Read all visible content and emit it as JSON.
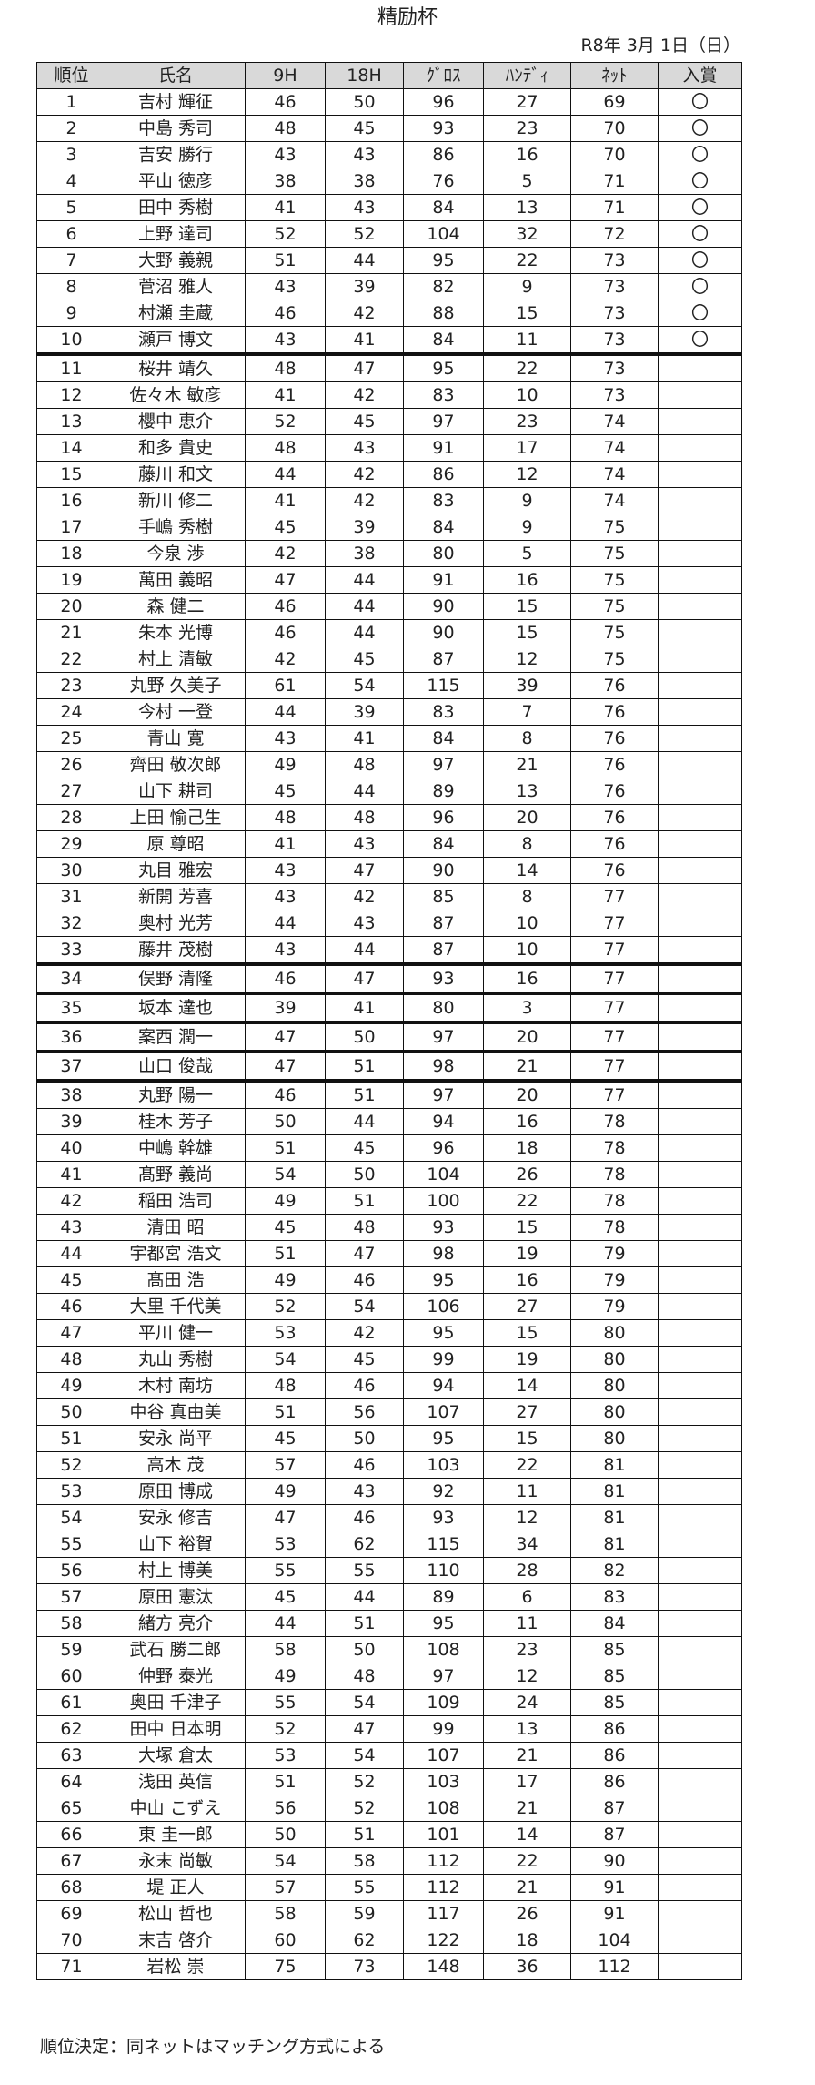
{
  "title": "精励杯",
  "date": "R8年 3月 1日（日）",
  "columns": [
    "順位",
    "氏名",
    "9H",
    "18H",
    "ｸﾞﾛｽ",
    "ﾊﾝﾃﾞｨ",
    "ﾈｯﾄ",
    "入賞"
  ],
  "rows": [
    [
      "1",
      "吉村 輝征",
      "46",
      "50",
      "96",
      "27",
      "69",
      "〇"
    ],
    [
      "2",
      "中島 秀司",
      "48",
      "45",
      "93",
      "23",
      "70",
      "〇"
    ],
    [
      "3",
      "吉安 勝行",
      "43",
      "43",
      "86",
      "16",
      "70",
      "〇"
    ],
    [
      "4",
      "平山 徳彦",
      "38",
      "38",
      "76",
      "5",
      "71",
      "〇"
    ],
    [
      "5",
      "田中 秀樹",
      "41",
      "43",
      "84",
      "13",
      "71",
      "〇"
    ],
    [
      "6",
      "上野 達司",
      "52",
      "52",
      "104",
      "32",
      "72",
      "〇"
    ],
    [
      "7",
      "大野 義親",
      "51",
      "44",
      "95",
      "22",
      "73",
      "〇"
    ],
    [
      "8",
      "菅沼 雅人",
      "43",
      "39",
      "82",
      "9",
      "73",
      "〇"
    ],
    [
      "9",
      "村瀬 圭蔵",
      "46",
      "42",
      "88",
      "15",
      "73",
      "〇"
    ],
    [
      "10",
      "瀬戸 博文",
      "43",
      "41",
      "84",
      "11",
      "73",
      "〇"
    ],
    [
      "11",
      "桜井 靖久",
      "48",
      "47",
      "95",
      "22",
      "73",
      ""
    ],
    [
      "12",
      "佐々木 敏彦",
      "41",
      "42",
      "83",
      "10",
      "73",
      ""
    ],
    [
      "13",
      "櫻中 恵介",
      "52",
      "45",
      "97",
      "23",
      "74",
      ""
    ],
    [
      "14",
      "和多 貴史",
      "48",
      "43",
      "91",
      "17",
      "74",
      ""
    ],
    [
      "15",
      "藤川 和文",
      "44",
      "42",
      "86",
      "12",
      "74",
      ""
    ],
    [
      "16",
      "新川 修二",
      "41",
      "42",
      "83",
      "9",
      "74",
      ""
    ],
    [
      "17",
      "手嶋 秀樹",
      "45",
      "39",
      "84",
      "9",
      "75",
      ""
    ],
    [
      "18",
      "今泉 渉",
      "42",
      "38",
      "80",
      "5",
      "75",
      ""
    ],
    [
      "19",
      "萬田 義昭",
      "47",
      "44",
      "91",
      "16",
      "75",
      ""
    ],
    [
      "20",
      "森 健二",
      "46",
      "44",
      "90",
      "15",
      "75",
      ""
    ],
    [
      "21",
      "朱本 光博",
      "46",
      "44",
      "90",
      "15",
      "75",
      ""
    ],
    [
      "22",
      "村上 清敏",
      "42",
      "45",
      "87",
      "12",
      "75",
      ""
    ],
    [
      "23",
      "丸野 久美子",
      "61",
      "54",
      "115",
      "39",
      "76",
      ""
    ],
    [
      "24",
      "今村 一登",
      "44",
      "39",
      "83",
      "7",
      "76",
      ""
    ],
    [
      "25",
      "青山 寛",
      "43",
      "41",
      "84",
      "8",
      "76",
      ""
    ],
    [
      "26",
      "齊田 敬次郎",
      "49",
      "48",
      "97",
      "21",
      "76",
      ""
    ],
    [
      "27",
      "山下 耕司",
      "45",
      "44",
      "89",
      "13",
      "76",
      ""
    ],
    [
      "28",
      "上田 愉己生",
      "48",
      "48",
      "96",
      "20",
      "76",
      ""
    ],
    [
      "29",
      "原 尊昭",
      "41",
      "43",
      "84",
      "8",
      "76",
      ""
    ],
    [
      "30",
      "丸目 雅宏",
      "43",
      "47",
      "90",
      "14",
      "76",
      ""
    ],
    [
      "31",
      "新開 芳喜",
      "43",
      "42",
      "85",
      "8",
      "77",
      ""
    ],
    [
      "32",
      "奥村 光芳",
      "44",
      "43",
      "87",
      "10",
      "77",
      ""
    ],
    [
      "33",
      "藤井 茂樹",
      "43",
      "44",
      "87",
      "10",
      "77",
      ""
    ],
    [
      "34",
      "俣野 清隆",
      "46",
      "47",
      "93",
      "16",
      "77",
      ""
    ],
    [
      "35",
      "坂本 達也",
      "39",
      "41",
      "80",
      "3",
      "77",
      ""
    ],
    [
      "36",
      "案西 潤一",
      "47",
      "50",
      "97",
      "20",
      "77",
      ""
    ],
    [
      "37",
      "山口 俊哉",
      "47",
      "51",
      "98",
      "21",
      "77",
      ""
    ],
    [
      "38",
      "丸野 陽一",
      "46",
      "51",
      "97",
      "20",
      "77",
      ""
    ],
    [
      "39",
      "桂木 芳子",
      "50",
      "44",
      "94",
      "16",
      "78",
      ""
    ],
    [
      "40",
      "中嶋 幹雄",
      "51",
      "45",
      "96",
      "18",
      "78",
      ""
    ],
    [
      "41",
      "髙野 義尚",
      "54",
      "50",
      "104",
      "26",
      "78",
      ""
    ],
    [
      "42",
      "稲田 浩司",
      "49",
      "51",
      "100",
      "22",
      "78",
      ""
    ],
    [
      "43",
      "清田 昭",
      "45",
      "48",
      "93",
      "15",
      "78",
      ""
    ],
    [
      "44",
      "宇都宮 浩文",
      "51",
      "47",
      "98",
      "19",
      "79",
      ""
    ],
    [
      "45",
      "髙田 浩",
      "49",
      "46",
      "95",
      "16",
      "79",
      ""
    ],
    [
      "46",
      "大里 千代美",
      "52",
      "54",
      "106",
      "27",
      "79",
      ""
    ],
    [
      "47",
      "平川 健一",
      "53",
      "42",
      "95",
      "15",
      "80",
      ""
    ],
    [
      "48",
      "丸山 秀樹",
      "54",
      "45",
      "99",
      "19",
      "80",
      ""
    ],
    [
      "49",
      "木村 南坊",
      "48",
      "46",
      "94",
      "14",
      "80",
      ""
    ],
    [
      "50",
      "中谷 真由美",
      "51",
      "56",
      "107",
      "27",
      "80",
      ""
    ],
    [
      "51",
      "安永 尚平",
      "45",
      "50",
      "95",
      "15",
      "80",
      ""
    ],
    [
      "52",
      "高木 茂",
      "57",
      "46",
      "103",
      "22",
      "81",
      ""
    ],
    [
      "53",
      "原田 博成",
      "49",
      "43",
      "92",
      "11",
      "81",
      ""
    ],
    [
      "54",
      "安永 修吉",
      "47",
      "46",
      "93",
      "12",
      "81",
      ""
    ],
    [
      "55",
      "山下 裕賀",
      "53",
      "62",
      "115",
      "34",
      "81",
      ""
    ],
    [
      "56",
      "村上 博美",
      "55",
      "55",
      "110",
      "28",
      "82",
      ""
    ],
    [
      "57",
      "原田 憲汰",
      "45",
      "44",
      "89",
      "6",
      "83",
      ""
    ],
    [
      "58",
      "緒方 亮介",
      "44",
      "51",
      "95",
      "11",
      "84",
      ""
    ],
    [
      "59",
      "武石 勝二郎",
      "58",
      "50",
      "108",
      "23",
      "85",
      ""
    ],
    [
      "60",
      "仲野 泰光",
      "49",
      "48",
      "97",
      "12",
      "85",
      ""
    ],
    [
      "61",
      "奥田 千津子",
      "55",
      "54",
      "109",
      "24",
      "85",
      ""
    ],
    [
      "62",
      "田中 日本明",
      "52",
      "47",
      "99",
      "13",
      "86",
      ""
    ],
    [
      "63",
      "大塚 倉太",
      "53",
      "54",
      "107",
      "21",
      "86",
      ""
    ],
    [
      "64",
      "浅田 英信",
      "51",
      "52",
      "103",
      "17",
      "86",
      ""
    ],
    [
      "65",
      "中山 こずえ",
      "56",
      "52",
      "108",
      "21",
      "87",
      ""
    ],
    [
      "66",
      "東 圭一郎",
      "50",
      "51",
      "101",
      "14",
      "87",
      ""
    ],
    [
      "67",
      "永末 尚敏",
      "54",
      "58",
      "112",
      "22",
      "90",
      ""
    ],
    [
      "68",
      "堤 正人",
      "57",
      "55",
      "112",
      "21",
      "91",
      ""
    ],
    [
      "69",
      "松山 哲也",
      "58",
      "59",
      "117",
      "26",
      "91",
      ""
    ],
    [
      "70",
      "末吉 啓介",
      "60",
      "62",
      "122",
      "18",
      "104",
      ""
    ],
    [
      "71",
      "岩松 崇",
      "75",
      "73",
      "148",
      "36",
      "112",
      ""
    ]
  ],
  "note": "順位決定：同ネットはマッチング方式による"
}
